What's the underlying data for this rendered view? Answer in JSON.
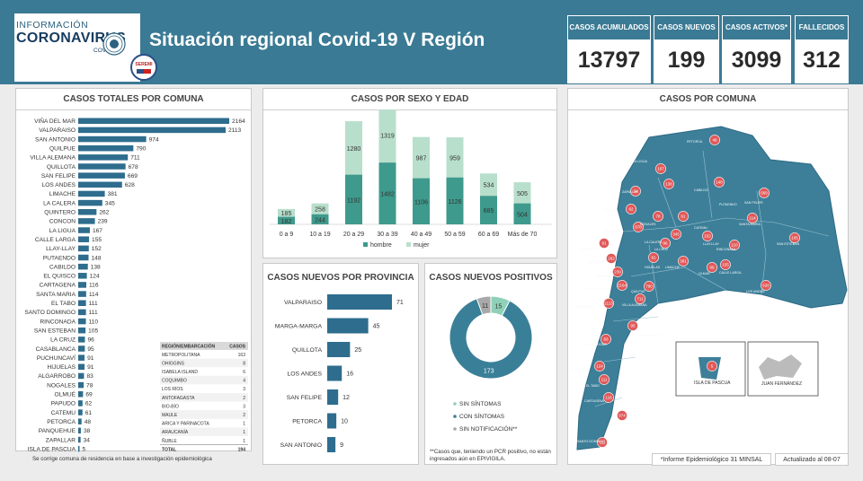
{
  "header": {
    "logo_line1": "INFORMACIÓN",
    "logo_line2": "CORONAVIRUS",
    "logo_line3": "COVID-19",
    "seremi": "SEREMI",
    "title": "Situación regional Covid-19 V Región"
  },
  "kpis": [
    {
      "label": "CASOS ACUMULADOS",
      "value": "13797"
    },
    {
      "label": "CASOS NUEVOS",
      "value": "199"
    },
    {
      "label": "CASOS ACTIVOS*",
      "value": "3099"
    },
    {
      "label": "FALLECIDOS",
      "value": "312"
    }
  ],
  "panels": {
    "comuna_title": "CASOS TOTALES POR COMUNA",
    "comuna_note": "Se corrige comuna de residencia en base a investigación epidemiológica",
    "sexo_title": "CASOS POR SEXO Y EDAD",
    "provincia_title": "CASOS NUEVOS  POR PROVINCIA",
    "positivos_title": "CASOS NUEVOS POSITIVOS",
    "positivos_note": "**Casos que, teniendo un PCR positivo, no están ingresados aún en EPIVIGILA.",
    "map_title": "CASOS POR COMUNA",
    "map_pascua": "ISLA DE PASCUA",
    "map_juan": "JUAN FERNÁNDEZ",
    "footer_informe": "*Informe Epidemiológico 31 MINSAL",
    "footer_actualizado": "Actualizado al 08-07"
  },
  "region_table": {
    "headers": [
      "REGIÓN/EMBARCACIÓN",
      "CASOS"
    ],
    "rows": [
      [
        "METROPOLITANA",
        "163"
      ],
      [
        "OHIGGINS",
        "8"
      ],
      [
        "ISABELA ISLAND",
        "6"
      ],
      [
        "COQUIMBO",
        "4"
      ],
      [
        "LOS RÍOS",
        "3"
      ],
      [
        "ANTOFAGASTA",
        "2"
      ],
      [
        "BIO-BÍO",
        "3"
      ],
      [
        "MAULE",
        "2"
      ],
      [
        "ARICA Y PARINACOTA",
        "1"
      ],
      [
        "ARAUCANÍA",
        "1"
      ],
      [
        "ÑUBLE",
        "1"
      ]
    ],
    "total_label": "TOTAL",
    "total_value": "194"
  },
  "map_labels": [
    "PETORCA",
    "LA LIGUA",
    "CABILDO",
    "PUTAENDO",
    "ZAPALLAR",
    "PAPUDO",
    "NOGALES",
    "CATEMU",
    "SANTA MARÍA",
    "SAN FELIPE",
    "SAN ESTEBAN",
    "QUILLOTA",
    "LA CRUZ",
    "LA CALERA",
    "LLAY-LLAY",
    "HIJUELAS",
    "RINCONADA",
    "CALLE LARGA",
    "LOS ANDES",
    "CONCÓN",
    "QUINTERO",
    "PUCHUNCAVÍ",
    "LIMACHE",
    "OLMUÉ",
    "VIÑA DEL MAR",
    "VALPARAÍSO",
    "VILLA ALEMANA",
    "QUILPUÉ",
    "CASABLANCA",
    "ALGARROBO",
    "EL QUISCO",
    "EL TABO",
    "CARTAGENA",
    "SAN ANTONIO",
    "SANTO DOMINGO"
  ],
  "chart_data": [
    {
      "type": "bar",
      "title": "CASOS TOTALES POR COMUNA",
      "orientation": "horizontal",
      "categories": [
        "VIÑA DEL MAR",
        "VALPARAISO",
        "SAN ANTONIO",
        "QUILPUE",
        "VILLA ALEMANA",
        "QUILLOTA",
        "SAN FELIPE",
        "LOS ANDES",
        "LIMACHE",
        "LA CALERA",
        "QUINTERO",
        "CONCON",
        "LA LIGUA",
        "CALLE LARGA",
        "LLAY-LLAY",
        "PUTAENDO",
        "CABILDO",
        "EL QUISCO",
        "CARTAGENA",
        "SANTA MARIA",
        "EL TABO",
        "SANTO DOMINGO",
        "RINCONADA",
        "SAN ESTEBAN",
        "LA CRUZ",
        "CASABLANCA",
        "PUCHUNCAVÍ",
        "HIJUELAS",
        "ALGARROBO",
        "NOGALES",
        "OLMUÉ",
        "PAPUDO",
        "CATEMU",
        "PETORCA",
        "PANQUEHUE",
        "ZAPALLAR",
        "ISLA DE PASCUA"
      ],
      "values": [
        2164,
        2113,
        974,
        790,
        711,
        678,
        669,
        628,
        381,
        345,
        262,
        239,
        167,
        155,
        152,
        148,
        138,
        124,
        116,
        114,
        111,
        111,
        110,
        105,
        96,
        95,
        91,
        91,
        83,
        78,
        69,
        62,
        61,
        48,
        38,
        34,
        5
      ],
      "xlim": [
        0,
        2164
      ]
    },
    {
      "type": "bar",
      "title": "CASOS POR SEXO Y EDAD",
      "stacked": true,
      "categories": [
        "0 a 9",
        "10 a 19",
        "20 a 29",
        "30 a 39",
        "40 a 49",
        "50 a 59",
        "60 a 69",
        "Más de 70"
      ],
      "series": [
        {
          "name": "hombre",
          "values": [
            182,
            244,
            1192,
            1482,
            1106,
            1126,
            685,
            504
          ],
          "color": "#3e9a8c"
        },
        {
          "name": "mujer",
          "values": [
            185,
            258,
            1280,
            1319,
            987,
            959,
            534,
            505
          ],
          "color": "#b8dfcc"
        }
      ],
      "legend": "bottom"
    },
    {
      "type": "bar",
      "title": "CASOS NUEVOS  POR PROVINCIA",
      "orientation": "horizontal",
      "categories": [
        "VALPARAISO",
        "MARGA-MARGA",
        "QUILLOTA",
        "LOS ANDES",
        "SAN FELIPE",
        "PETORCA",
        "SAN ANTONIO"
      ],
      "values": [
        71,
        45,
        25,
        16,
        12,
        10,
        9
      ]
    },
    {
      "type": "pie",
      "title": "CASOS NUEVOS POSITIVOS",
      "donut": true,
      "categories": [
        "SIN SÍNTOMAS",
        "CON SÍNTOMAS",
        "SIN NOTIFICACIÓN**"
      ],
      "values": [
        15,
        173,
        11
      ],
      "colors": [
        "#8fd1b8",
        "#3a7f98",
        "#a8a8a8"
      ],
      "legend": "bottom"
    },
    {
      "type": "table",
      "title": "CASOS POR COMUNA",
      "categories": [
        "PETORCA",
        "LA LIGUA",
        "CABILDO",
        "PUTAENDO",
        "ZAPALLAR",
        "PAPUDO",
        "NOGALES",
        "CATEMU",
        "SANTA MARÍA",
        "SAN FELIPE",
        "SAN ESTEBAN",
        "QUILLOTA",
        "LA CRUZ",
        "LA CALERA",
        "LLAY-LLAY",
        "HIJUELAS",
        "RINCONADA",
        "CALLE LARGA",
        "LOS ANDES",
        "CONCÓN",
        "QUINTERO",
        "PUCHUNCAVÍ",
        "LIMACHE",
        "OLMUÉ",
        "VIÑA DEL MAR",
        "VALPARAÍSO",
        "VILLA ALEMANA",
        "QUILPUÉ",
        "CASABLANCA",
        "ALGARROBO",
        "EL QUISCO",
        "EL TABO",
        "CARTAGENA",
        "SAN ANTONIO",
        "SANTO DOMINGO",
        "ISLA DE PASCUA"
      ],
      "values": [
        48,
        167,
        138,
        148,
        34,
        62,
        78,
        61,
        114,
        669,
        105,
        678,
        96,
        345,
        152,
        91,
        110,
        155,
        628,
        239,
        262,
        91,
        381,
        69,
        2164,
        2113,
        711,
        790,
        95,
        83,
        124,
        111,
        116,
        974,
        111,
        5
      ]
    }
  ]
}
